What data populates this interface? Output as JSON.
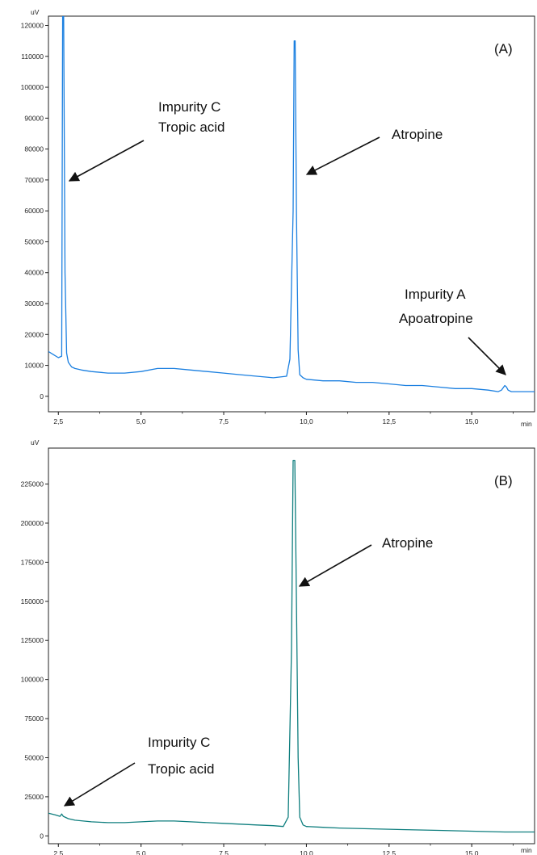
{
  "chart_data": [
    {
      "type": "line",
      "panel_label": "(A)",
      "ylabel": "uV",
      "xlabel": "min",
      "xlim": [
        2.2,
        16.9
      ],
      "ylim": [
        -5000,
        123000
      ],
      "x_ticks": [
        2.5,
        5.0,
        7.5,
        10.0,
        12.5,
        15.0
      ],
      "x_tick_labels": [
        "2,5",
        "5,0",
        "7,5",
        "10,0",
        "12,5",
        "15,0"
      ],
      "y_ticks": [
        0,
        10000,
        20000,
        30000,
        40000,
        50000,
        60000,
        70000,
        80000,
        90000,
        100000,
        110000,
        120000
      ],
      "y_tick_labels": [
        "0",
        "10000",
        "20000",
        "30000",
        "40000",
        "50000",
        "60000",
        "70000",
        "80000",
        "90000",
        "100000",
        "110000",
        "120000"
      ],
      "grid": false,
      "color": "#1a7fe0",
      "series": [
        {
          "x": [
            2.2,
            2.35,
            2.5,
            2.6,
            2.63,
            2.66,
            2.7,
            2.75,
            2.8,
            2.9,
            3.0,
            3.2,
            3.5,
            4.0,
            4.5,
            5.0,
            5.5,
            6.0,
            6.5,
            7.0,
            7.5,
            8.0,
            8.5,
            9.0,
            9.4,
            9.5,
            9.6,
            9.63,
            9.66,
            9.7,
            9.75,
            9.8,
            9.9,
            10.0,
            10.5,
            11.0,
            11.5,
            12.0,
            12.5,
            13.0,
            13.5,
            14.0,
            14.5,
            15.0,
            15.5,
            15.8,
            15.9,
            16.0,
            16.05,
            16.1,
            16.2,
            16.4,
            16.9
          ],
          "y": [
            14500,
            13500,
            12500,
            13000,
            124000,
            124000,
            40000,
            14000,
            11000,
            9500,
            9000,
            8500,
            8000,
            7500,
            7500,
            8000,
            9000,
            9000,
            8500,
            8000,
            7500,
            7000,
            6500,
            6000,
            6500,
            12000,
            60000,
            115000,
            115000,
            60000,
            15000,
            7000,
            6000,
            5500,
            5000,
            5000,
            4500,
            4500,
            4000,
            3500,
            3500,
            3000,
            2500,
            2500,
            2000,
            1500,
            2000,
            3500,
            3000,
            2000,
            1500,
            1500,
            1500
          ]
        }
      ],
      "annotations": [
        {
          "lines": [
            "Impurity C",
            "Tropic acid"
          ],
          "x": 2.63
        },
        {
          "lines": [
            "Atropine"
          ],
          "x": 9.65
        },
        {
          "lines": [
            "Impurity A",
            "Apoatropine"
          ],
          "x": 16.0
        }
      ]
    },
    {
      "type": "line",
      "panel_label": "(B)",
      "ylabel": "uV",
      "xlabel": "min",
      "xlim": [
        2.2,
        16.9
      ],
      "ylim": [
        -5000,
        248000
      ],
      "x_ticks": [
        2.5,
        5.0,
        7.5,
        10.0,
        12.5,
        15.0
      ],
      "x_tick_labels": [
        "2,5",
        "5,0",
        "7,5",
        "10,0",
        "12,5",
        "15,0"
      ],
      "y_ticks": [
        0,
        25000,
        50000,
        75000,
        100000,
        125000,
        150000,
        175000,
        200000,
        225000
      ],
      "y_tick_labels": [
        "0",
        "25000",
        "50000",
        "75000",
        "100000",
        "125000",
        "150000",
        "175000",
        "200000",
        "225000"
      ],
      "grid": false,
      "color": "#0e7e7e",
      "series": [
        {
          "x": [
            2.2,
            2.4,
            2.55,
            2.6,
            2.65,
            2.8,
            3.0,
            3.5,
            4.0,
            4.5,
            5.0,
            5.5,
            6.0,
            6.5,
            7.0,
            7.5,
            8.0,
            8.5,
            9.0,
            9.3,
            9.45,
            9.55,
            9.6,
            9.65,
            9.7,
            9.75,
            9.8,
            9.9,
            10.0,
            10.5,
            11.0,
            12.0,
            13.0,
            14.0,
            15.0,
            16.0,
            16.9
          ],
          "y": [
            14500,
            13500,
            12500,
            14000,
            12500,
            11000,
            10000,
            9000,
            8500,
            8500,
            9000,
            9500,
            9500,
            9000,
            8500,
            8000,
            7500,
            7000,
            6500,
            6000,
            12000,
            120000,
            240000,
            240000,
            150000,
            50000,
            12000,
            7000,
            6000,
            5500,
            5000,
            4500,
            4000,
            3500,
            3000,
            2500,
            2500
          ]
        }
      ],
      "annotations": [
        {
          "lines": [
            "Atropine"
          ],
          "x": 9.65
        },
        {
          "lines": [
            "Impurity C",
            "Tropic acid"
          ],
          "x": 2.55
        }
      ]
    }
  ]
}
